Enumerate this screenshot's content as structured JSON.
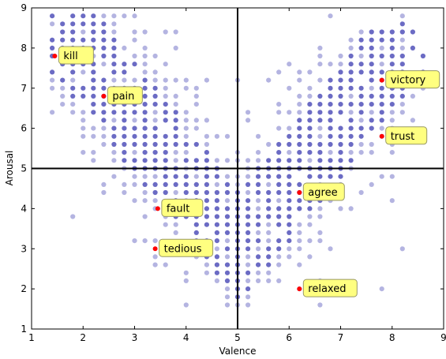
{
  "chart_data": {
    "type": "scatter",
    "title": "",
    "xlabel": "Valence",
    "ylabel": "Arousal",
    "xlim": [
      1,
      9
    ],
    "ylim": [
      1,
      9
    ],
    "xticks": [
      "1",
      "2",
      "3",
      "4",
      "5",
      "6",
      "7",
      "8",
      "9"
    ],
    "yticks": [
      "1",
      "2",
      "3",
      "4",
      "5",
      "6",
      "7",
      "8",
      "9"
    ],
    "grid": false,
    "reference_lines": {
      "x": 5,
      "y": 5
    },
    "colors": {
      "points": "#3a3ab0",
      "highlight": "#ff0000",
      "label_bg": "#ffff80",
      "label_border": "#999966"
    },
    "annotations": [
      {
        "text": "kill",
        "x": 1.45,
        "y": 7.8
      },
      {
        "text": "pain",
        "x": 2.4,
        "y": 6.8
      },
      {
        "text": "fault",
        "x": 3.45,
        "y": 4.0
      },
      {
        "text": "tedious",
        "x": 3.4,
        "y": 3.0
      },
      {
        "text": "agree",
        "x": 6.2,
        "y": 4.4
      },
      {
        "text": "relaxed",
        "x": 6.2,
        "y": 2.0
      },
      {
        "text": "victory",
        "x": 7.8,
        "y": 7.2
      },
      {
        "text": "trust",
        "x": 7.8,
        "y": 5.8
      }
    ],
    "points_note_density": "dense V-shaped grid of points at 0.2 spacing"
  }
}
